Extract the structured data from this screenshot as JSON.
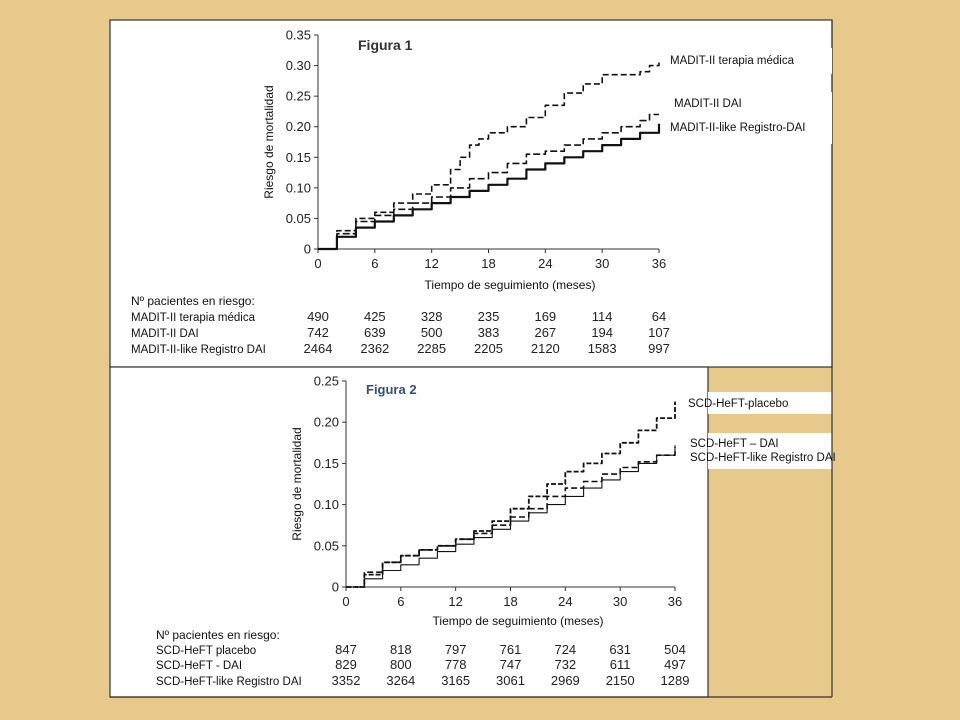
{
  "colors": {
    "background": "#e8c98c",
    "panel": "#ffffff",
    "border": "#333333",
    "ink": "#111111",
    "figure2_title": "#2f4f7f"
  },
  "chart_data": [
    {
      "type": "line",
      "title": "Figura 1",
      "xlabel": "Tiempo de seguimiento (meses)",
      "ylabel": "Riesgo de mortalidad",
      "xlim": [
        0,
        36
      ],
      "ylim": [
        0,
        0.35
      ],
      "xticks": [
        0,
        6,
        12,
        18,
        24,
        30,
        36
      ],
      "yticks": [
        "0",
        "0.05",
        "0.10",
        "0.15",
        "0.20",
        "0.25",
        "0.30",
        "0.35"
      ],
      "grid": false,
      "legend": "right",
      "series": [
        {
          "name": "MADIT-II terapia médica",
          "style": "dashed",
          "x": [
            0,
            2,
            4,
            6,
            8,
            10,
            12,
            14,
            15,
            16,
            17,
            18,
            20,
            22,
            24,
            26,
            28,
            30,
            32,
            34,
            35,
            36
          ],
          "y": [
            0,
            0.03,
            0.05,
            0.06,
            0.075,
            0.09,
            0.105,
            0.13,
            0.15,
            0.17,
            0.18,
            0.19,
            0.2,
            0.215,
            0.235,
            0.255,
            0.27,
            0.285,
            0.285,
            0.29,
            0.3,
            0.305
          ]
        },
        {
          "name": "MADIT-II DAI",
          "style": "dashed",
          "x": [
            0,
            2,
            4,
            6,
            8,
            10,
            12,
            14,
            16,
            18,
            20,
            22,
            24,
            26,
            28,
            30,
            32,
            34,
            35,
            36
          ],
          "y": [
            0,
            0.025,
            0.045,
            0.055,
            0.065,
            0.075,
            0.085,
            0.1,
            0.115,
            0.125,
            0.14,
            0.155,
            0.16,
            0.17,
            0.18,
            0.19,
            0.2,
            0.21,
            0.22,
            0.22
          ]
        },
        {
          "name": "MADIT-II-like Registro-DAI",
          "style": "solid",
          "x": [
            0,
            2,
            4,
            6,
            8,
            10,
            12,
            14,
            16,
            18,
            20,
            22,
            24,
            26,
            28,
            30,
            32,
            34,
            36
          ],
          "y": [
            0,
            0.02,
            0.035,
            0.045,
            0.055,
            0.065,
            0.075,
            0.085,
            0.095,
            0.105,
            0.115,
            0.13,
            0.14,
            0.15,
            0.16,
            0.17,
            0.18,
            0.19,
            0.205
          ]
        }
      ],
      "risk_table": {
        "title": "Nº pacientes en riesgo:",
        "rows": [
          {
            "name": "MADIT-II terapia médica",
            "values": [
              "490",
              "425",
              "328",
              "235",
              "169",
              "114",
              "64"
            ]
          },
          {
            "name": "MADIT-II DAI",
            "values": [
              "742",
              "639",
              "500",
              "383",
              "267",
              "194",
              "107"
            ]
          },
          {
            "name": "MADIT-II-like Registro DAI",
            "values": [
              "2464",
              "2362",
              "2285",
              "2205",
              "2120",
              "1583",
              "997"
            ]
          }
        ]
      }
    },
    {
      "type": "line",
      "title": "Figura 2",
      "xlabel": "Tiempo de seguimiento (meses)",
      "ylabel": "Riesgo de mortalidad",
      "xlim": [
        0,
        36
      ],
      "ylim": [
        0,
        0.25
      ],
      "xticks": [
        0,
        6,
        12,
        18,
        24,
        30,
        36
      ],
      "yticks": [
        "0",
        "0.05",
        "0.10",
        "0.15",
        "0.20",
        "0.25"
      ],
      "grid": false,
      "legend": "right",
      "series": [
        {
          "name": "SCD-HeFT-placebo",
          "style": "dashed",
          "x": [
            0,
            2,
            4,
            6,
            8,
            10,
            12,
            14,
            16,
            18,
            20,
            22,
            24,
            26,
            28,
            30,
            32,
            34,
            36
          ],
          "y": [
            0,
            0.015,
            0.03,
            0.038,
            0.045,
            0.05,
            0.058,
            0.068,
            0.08,
            0.095,
            0.11,
            0.125,
            0.14,
            0.15,
            0.162,
            0.175,
            0.19,
            0.205,
            0.225
          ]
        },
        {
          "name": "SCD-HeFT – DAI",
          "style": "dashed",
          "x": [
            0,
            2,
            4,
            6,
            8,
            10,
            12,
            14,
            16,
            18,
            20,
            22,
            24,
            26,
            28,
            30,
            32,
            34,
            36
          ],
          "y": [
            0,
            0.018,
            0.03,
            0.038,
            0.045,
            0.05,
            0.058,
            0.065,
            0.075,
            0.085,
            0.095,
            0.11,
            0.12,
            0.128,
            0.137,
            0.145,
            0.152,
            0.16,
            0.17
          ]
        },
        {
          "name": "SCD-HeFT-like Registro DAI",
          "style": "solid-thin",
          "x": [
            0,
            2,
            4,
            6,
            8,
            10,
            12,
            14,
            16,
            18,
            20,
            22,
            24,
            26,
            28,
            30,
            32,
            34,
            36
          ],
          "y": [
            0,
            0.01,
            0.02,
            0.027,
            0.035,
            0.043,
            0.052,
            0.06,
            0.07,
            0.08,
            0.09,
            0.1,
            0.11,
            0.12,
            0.13,
            0.14,
            0.15,
            0.16,
            0.172
          ]
        }
      ],
      "risk_table": {
        "title": "Nº pacientes en riesgo:",
        "rows": [
          {
            "name": "SCD-HeFT placebo",
            "values": [
              "847",
              "818",
              "797",
              "761",
              "724",
              "631",
              "504"
            ]
          },
          {
            "name": "SCD-HeFT - DAI",
            "values": [
              "829",
              "800",
              "778",
              "747",
              "732",
              "611",
              "497"
            ]
          },
          {
            "name": "SCD-HeFT-like Registro DAI",
            "values": [
              "3352",
              "3264",
              "3165",
              "3061",
              "2969",
              "2150",
              "1289"
            ]
          }
        ]
      }
    }
  ]
}
